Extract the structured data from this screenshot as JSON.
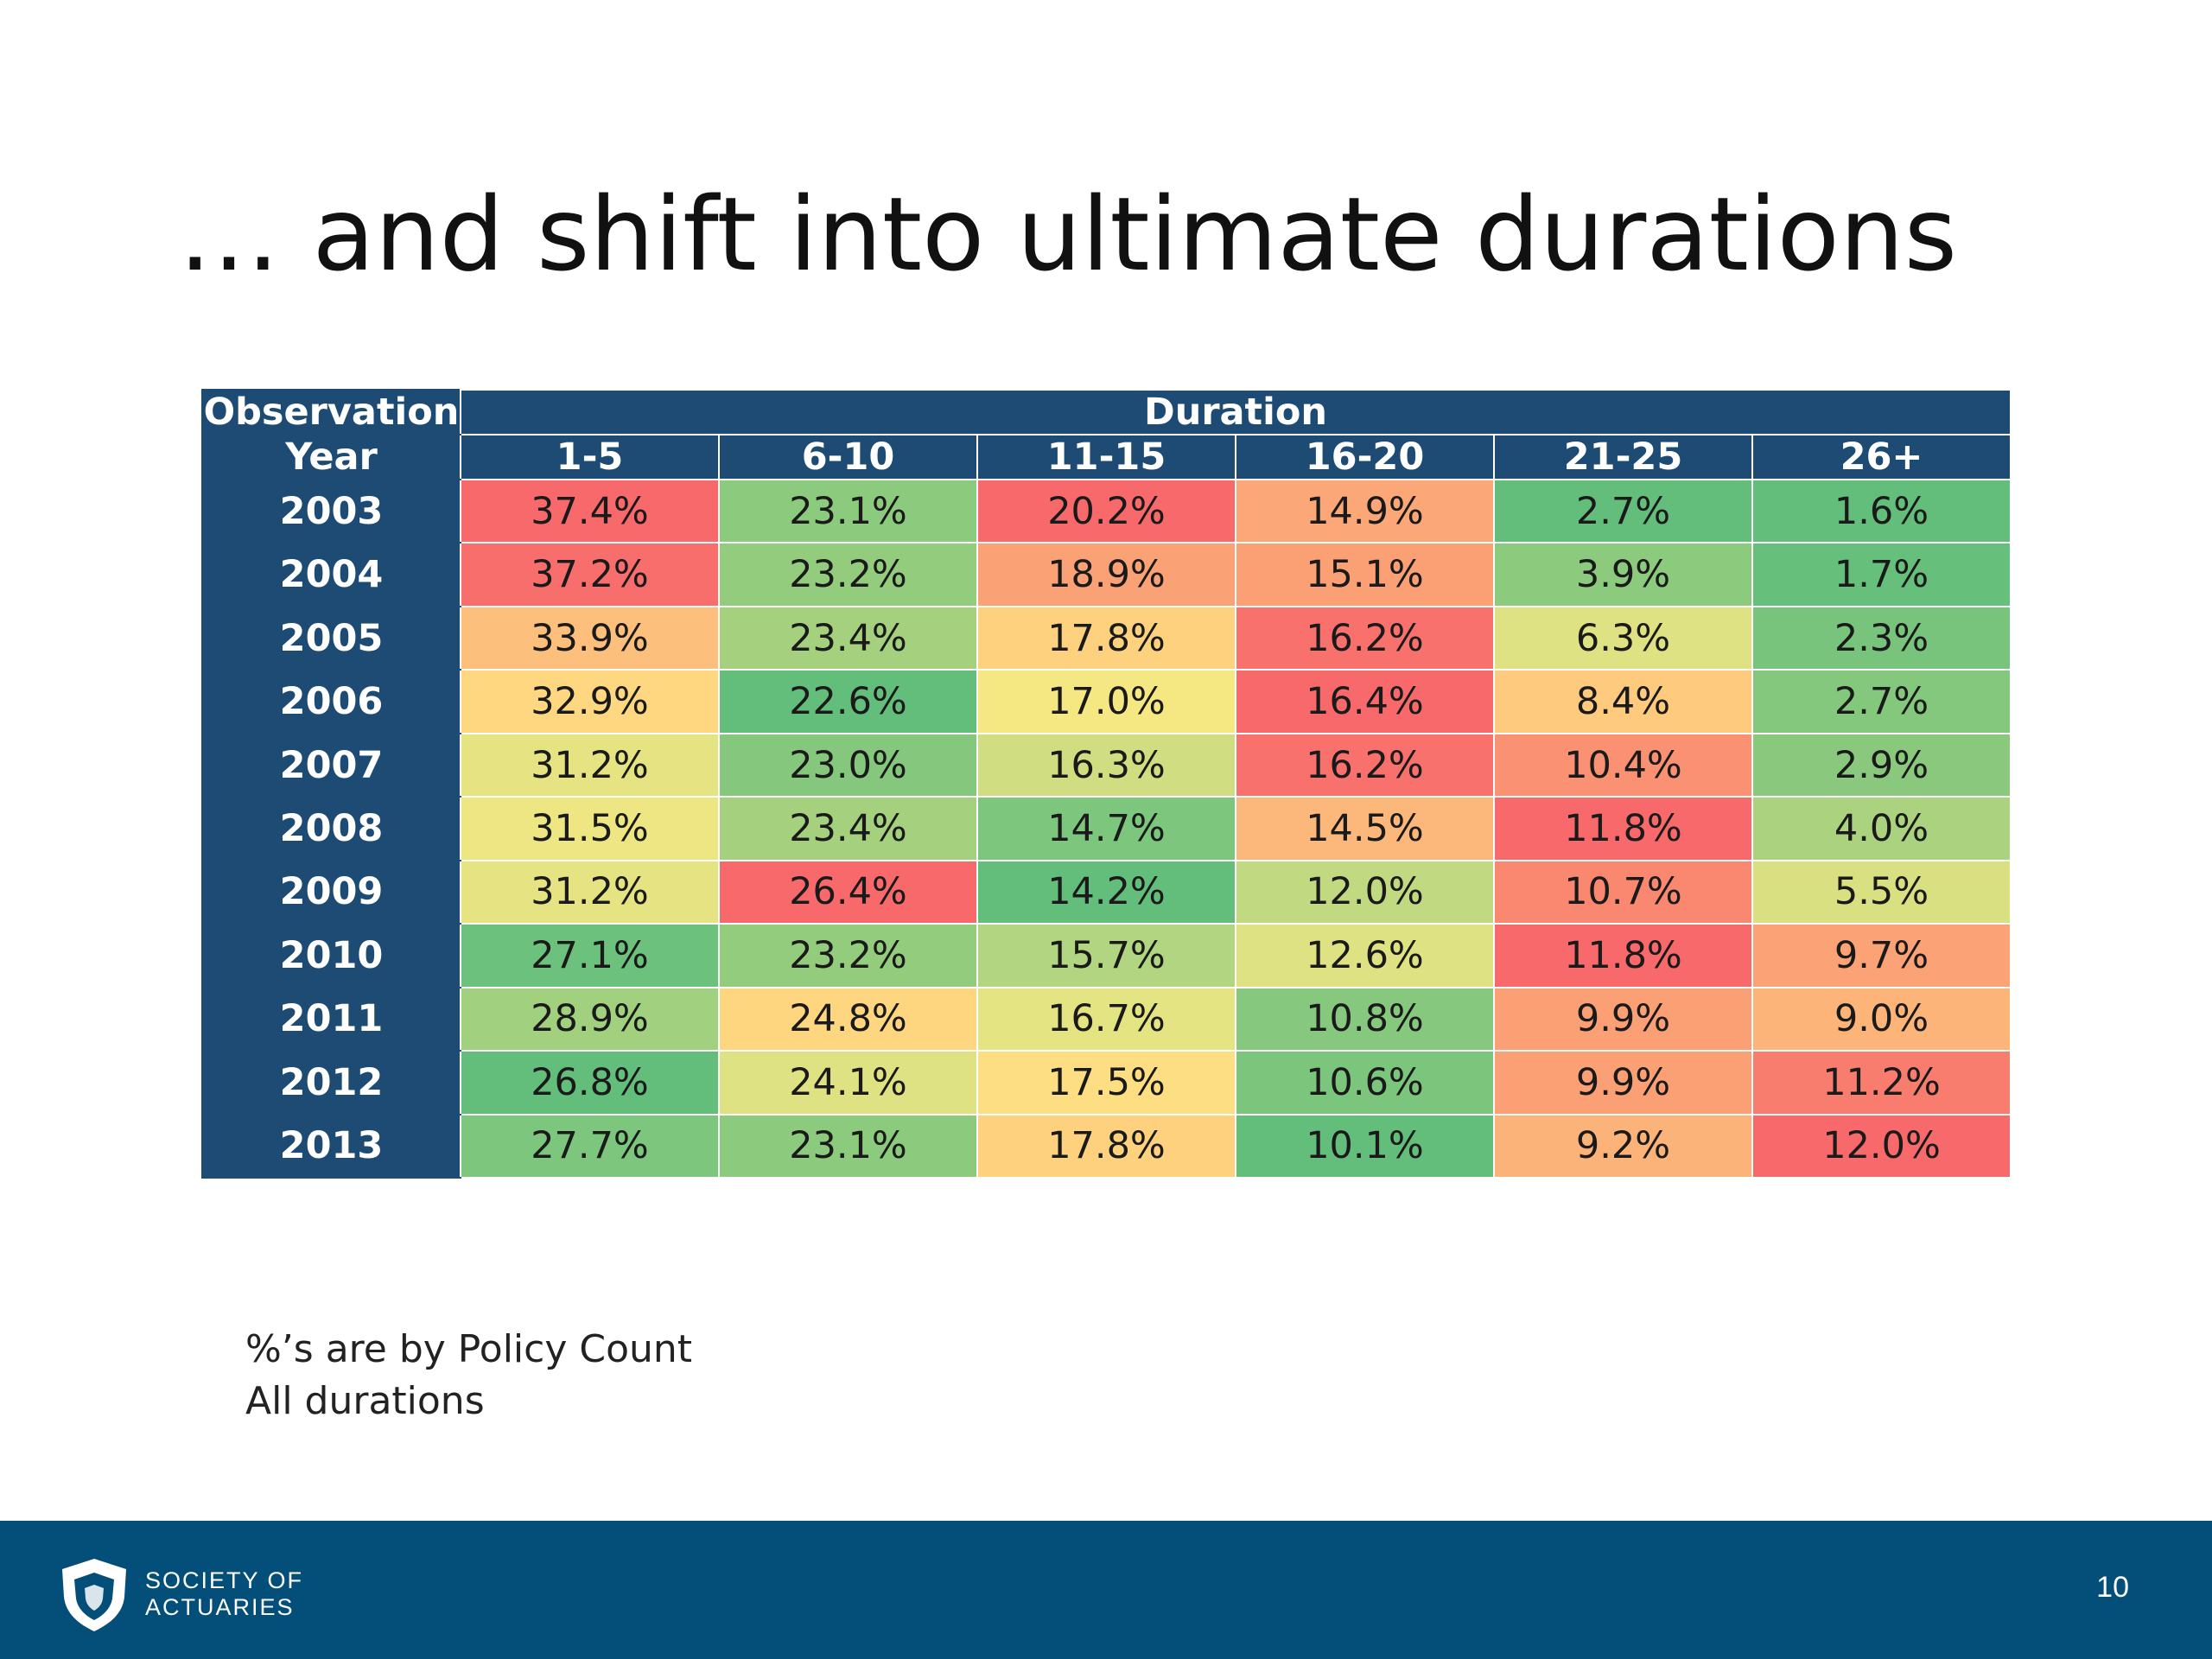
{
  "slide": {
    "title": "… and shift into ultimate durations",
    "notes": [
      "%’s are by Policy Count",
      "All durations"
    ],
    "page_number": "10"
  },
  "footer": {
    "logo_line1": "SOCIETY OF",
    "logo_line2": "ACTUARIES"
  },
  "colors": {
    "header_bg": "#1e4b73",
    "footer_bg": "#044e7a",
    "scale_low": "#63be7b",
    "scale_mid": "#ffeb84",
    "scale_high": "#f8696b"
  },
  "chart_data": {
    "type": "heatmap",
    "header_row1": {
      "left": "Observation",
      "span": "Duration"
    },
    "header_row2": {
      "left": "Year"
    },
    "columns": [
      "1-5",
      "6-10",
      "11-15",
      "16-20",
      "21-25",
      "26+"
    ],
    "rows": [
      {
        "year": "2003",
        "values": [
          "37.4%",
          "23.1%",
          "20.2%",
          "14.9%",
          "2.7%",
          "1.6%"
        ]
      },
      {
        "year": "2004",
        "values": [
          "37.2%",
          "23.2%",
          "18.9%",
          "15.1%",
          "3.9%",
          "1.7%"
        ]
      },
      {
        "year": "2005",
        "values": [
          "33.9%",
          "23.4%",
          "17.8%",
          "16.2%",
          "6.3%",
          "2.3%"
        ]
      },
      {
        "year": "2006",
        "values": [
          "32.9%",
          "22.6%",
          "17.0%",
          "16.4%",
          "8.4%",
          "2.7%"
        ]
      },
      {
        "year": "2007",
        "values": [
          "31.2%",
          "23.0%",
          "16.3%",
          "16.2%",
          "10.4%",
          "2.9%"
        ]
      },
      {
        "year": "2008",
        "values": [
          "31.5%",
          "23.4%",
          "14.7%",
          "14.5%",
          "11.8%",
          "4.0%"
        ]
      },
      {
        "year": "2009",
        "values": [
          "31.2%",
          "26.4%",
          "14.2%",
          "12.0%",
          "10.7%",
          "5.5%"
        ]
      },
      {
        "year": "2010",
        "values": [
          "27.1%",
          "23.2%",
          "15.7%",
          "12.6%",
          "11.8%",
          "9.7%"
        ]
      },
      {
        "year": "2011",
        "values": [
          "28.9%",
          "24.8%",
          "16.7%",
          "10.8%",
          "9.9%",
          "9.0%"
        ]
      },
      {
        "year": "2012",
        "values": [
          "26.8%",
          "24.1%",
          "17.5%",
          "10.6%",
          "9.9%",
          "11.2%"
        ]
      },
      {
        "year": "2013",
        "values": [
          "27.7%",
          "23.1%",
          "17.8%",
          "10.1%",
          "9.2%",
          "12.0%"
        ]
      }
    ],
    "color_scale": "per-column green-yellow-red (low to high)"
  }
}
